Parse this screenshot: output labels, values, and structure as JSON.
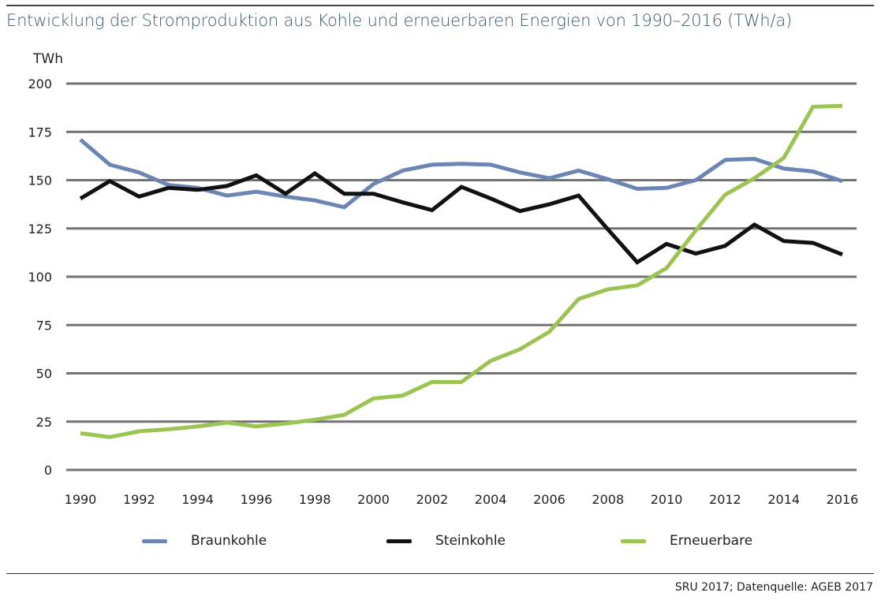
{
  "header": {
    "title": "Entwicklung der Stromproduktion aus Kohle und erneuerbaren Energien von 1990–2016 (TWh/a)"
  },
  "footer": {
    "source": "SRU 2017; Datenquelle: AGEB 2017"
  },
  "chart_data": {
    "type": "line",
    "title": "Entwicklung der Stromproduktion aus Kohle und erneuerbaren Energien von 1990–2016 (TWh/a)",
    "xlabel": "",
    "ylabel": "TWh",
    "x": [
      1990,
      1991,
      1992,
      1993,
      1994,
      1995,
      1996,
      1997,
      1998,
      1999,
      2000,
      2001,
      2002,
      2003,
      2004,
      2005,
      2006,
      2007,
      2008,
      2009,
      2010,
      2011,
      2012,
      2013,
      2014,
      2015,
      2016
    ],
    "x_ticks": [
      "1990",
      "1992",
      "1994",
      "1996",
      "1998",
      "2000",
      "2002",
      "2004",
      "2006",
      "2008",
      "2010",
      "2012",
      "2014",
      "2016"
    ],
    "xlim": [
      1990,
      2016
    ],
    "ylim": [
      0,
      200
    ],
    "y_ticks": [
      "0",
      "25",
      "50",
      "75",
      "100",
      "125",
      "150",
      "175",
      "200"
    ],
    "grid": "horizontal",
    "legend_position": "bottom",
    "series": [
      {
        "name": "Braunkohle",
        "color": "#6b86b3",
        "values": [
          171,
          158,
          154,
          147.5,
          146,
          142,
          144,
          141.5,
          139.5,
          136,
          148,
          155,
          158,
          158.5,
          158,
          154,
          151,
          155,
          150.5,
          145.5,
          146,
          150,
          160.5,
          161,
          156,
          154.5,
          149.5
        ]
      },
      {
        "name": "Steinkohle",
        "color": "#111111",
        "values": [
          140.5,
          149.5,
          141.5,
          146,
          145,
          147,
          152.5,
          143,
          153.5,
          143,
          143,
          138.5,
          134.5,
          146.5,
          140.5,
          134,
          137.5,
          142,
          124.5,
          107.5,
          117,
          112,
          116,
          127,
          118.5,
          117.5,
          111.5
        ]
      },
      {
        "name": "Erneuerbare",
        "color": "#9bc453",
        "values": [
          19,
          17,
          20,
          21,
          22.5,
          24.5,
          22.5,
          24,
          26,
          28.5,
          37,
          38.5,
          45.5,
          45.5,
          56.5,
          62.5,
          71.5,
          88.5,
          93.5,
          95.5,
          104.5,
          124,
          142.5,
          151,
          161.5,
          188,
          188.5
        ]
      }
    ]
  }
}
